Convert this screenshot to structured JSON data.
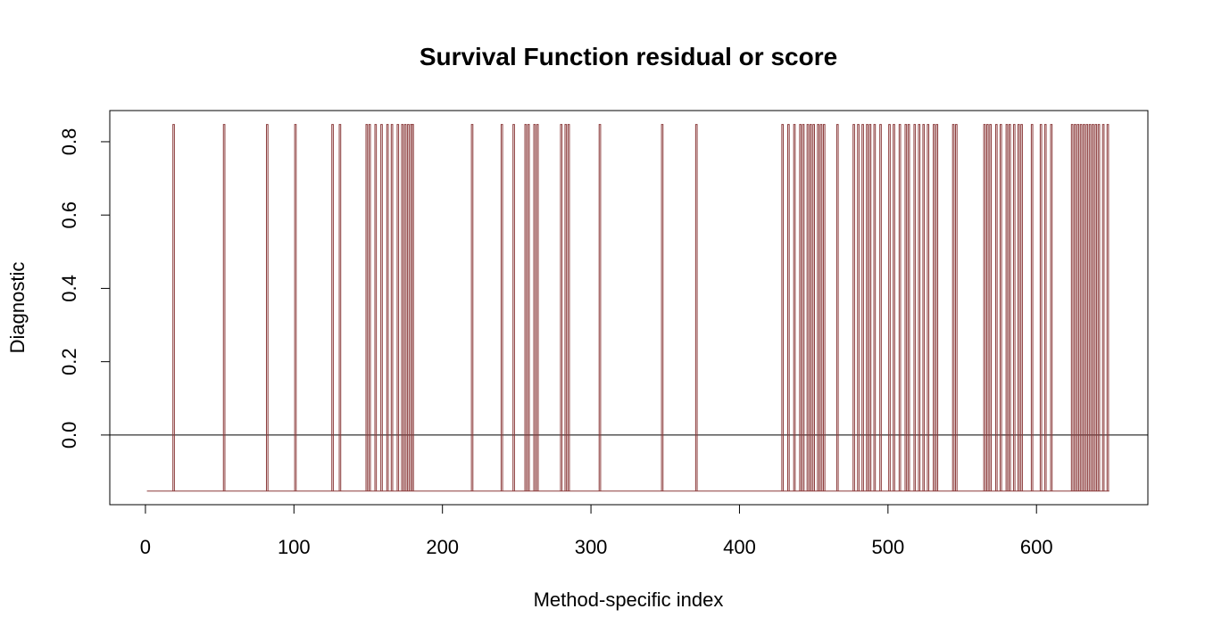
{
  "chart_data": {
    "type": "line",
    "style": "step",
    "title": "Survival Function residual or score",
    "xlabel": "Method-specific index",
    "ylabel": "Diagnostic",
    "xlim": [
      -24,
      675
    ],
    "ylim": [
      -0.19,
      0.885
    ],
    "x_ticks": [
      0,
      100,
      200,
      300,
      400,
      500,
      600
    ],
    "x_tick_labels": [
      "0",
      "100",
      "200",
      "300",
      "400",
      "500",
      "600"
    ],
    "y_ticks": [
      0.0,
      0.2,
      0.4,
      0.6,
      0.8
    ],
    "y_tick_labels": [
      "0.0",
      "0.2",
      "0.4",
      "0.6",
      "0.8"
    ],
    "reference_line": {
      "y": 0
    },
    "grid": false,
    "legend": "none",
    "baseline": -0.153,
    "line_color": "#8b3a3a",
    "x_start": 1,
    "x_end": 649,
    "spikes": [
      {
        "x": 19,
        "peak": 0.847
      },
      {
        "x": 53,
        "peak": 0.847
      },
      {
        "x": 82,
        "peak": 0.847
      },
      {
        "x": 101,
        "peak": 0.847
      },
      {
        "x": 126,
        "peak": 0.847
      },
      {
        "x": 131,
        "peak": 0.847
      },
      {
        "x": 149,
        "peak": 0.847
      },
      {
        "x": 151,
        "peak": 0.847
      },
      {
        "x": 155,
        "peak": 0.847
      },
      {
        "x": 159,
        "peak": 0.847
      },
      {
        "x": 163,
        "peak": 0.847
      },
      {
        "x": 166,
        "peak": 0.847
      },
      {
        "x": 170,
        "peak": 0.847
      },
      {
        "x": 173,
        "peak": 0.847
      },
      {
        "x": 175,
        "peak": 0.847
      },
      {
        "x": 177,
        "peak": 0.847
      },
      {
        "x": 179,
        "peak": 0.847
      },
      {
        "x": 180,
        "peak": 0.847
      },
      {
        "x": 220,
        "peak": 0.847
      },
      {
        "x": 240,
        "peak": 0.847
      },
      {
        "x": 248,
        "peak": 0.847
      },
      {
        "x": 256,
        "peak": 0.847
      },
      {
        "x": 258,
        "peak": 0.847
      },
      {
        "x": 262,
        "peak": 0.847
      },
      {
        "x": 264,
        "peak": 0.847
      },
      {
        "x": 280,
        "peak": 0.847
      },
      {
        "x": 283,
        "peak": 0.847
      },
      {
        "x": 285,
        "peak": 0.847
      },
      {
        "x": 306,
        "peak": 0.847
      },
      {
        "x": 348,
        "peak": 0.847
      },
      {
        "x": 371,
        "peak": 0.847
      },
      {
        "x": 429,
        "peak": 0.847
      },
      {
        "x": 433,
        "peak": 0.847
      },
      {
        "x": 437,
        "peak": 0.847
      },
      {
        "x": 441,
        "peak": 0.847
      },
      {
        "x": 443,
        "peak": 0.847
      },
      {
        "x": 446,
        "peak": 0.847
      },
      {
        "x": 448,
        "peak": 0.847
      },
      {
        "x": 450,
        "peak": 0.847
      },
      {
        "x": 453,
        "peak": 0.847
      },
      {
        "x": 455,
        "peak": 0.847
      },
      {
        "x": 457,
        "peak": 0.847
      },
      {
        "x": 466,
        "peak": 0.847
      },
      {
        "x": 477,
        "peak": 0.847
      },
      {
        "x": 480,
        "peak": 0.847
      },
      {
        "x": 483,
        "peak": 0.847
      },
      {
        "x": 486,
        "peak": 0.847
      },
      {
        "x": 488,
        "peak": 0.847
      },
      {
        "x": 491,
        "peak": 0.847
      },
      {
        "x": 495,
        "peak": 0.847
      },
      {
        "x": 501,
        "peak": 0.847
      },
      {
        "x": 504,
        "peak": 0.847
      },
      {
        "x": 508,
        "peak": 0.847
      },
      {
        "x": 512,
        "peak": 0.847
      },
      {
        "x": 514,
        "peak": 0.847
      },
      {
        "x": 518,
        "peak": 0.847
      },
      {
        "x": 521,
        "peak": 0.847
      },
      {
        "x": 524,
        "peak": 0.847
      },
      {
        "x": 527,
        "peak": 0.847
      },
      {
        "x": 531,
        "peak": 0.847
      },
      {
        "x": 533,
        "peak": 0.847
      },
      {
        "x": 544,
        "peak": 0.847
      },
      {
        "x": 546,
        "peak": 0.847
      },
      {
        "x": 565,
        "peak": 0.847
      },
      {
        "x": 567,
        "peak": 0.847
      },
      {
        "x": 569,
        "peak": 0.847
      },
      {
        "x": 573,
        "peak": 0.847
      },
      {
        "x": 576,
        "peak": 0.847
      },
      {
        "x": 580,
        "peak": 0.847
      },
      {
        "x": 582,
        "peak": 0.847
      },
      {
        "x": 585,
        "peak": 0.847
      },
      {
        "x": 588,
        "peak": 0.847
      },
      {
        "x": 590,
        "peak": 0.847
      },
      {
        "x": 597,
        "peak": 0.847
      },
      {
        "x": 603,
        "peak": 0.847
      },
      {
        "x": 606,
        "peak": 0.847
      },
      {
        "x": 610,
        "peak": 0.847
      },
      {
        "x": 624,
        "peak": 0.847
      },
      {
        "x": 626,
        "peak": 0.847
      },
      {
        "x": 628,
        "peak": 0.847
      },
      {
        "x": 630,
        "peak": 0.847
      },
      {
        "x": 632,
        "peak": 0.847
      },
      {
        "x": 634,
        "peak": 0.847
      },
      {
        "x": 636,
        "peak": 0.847
      },
      {
        "x": 638,
        "peak": 0.847
      },
      {
        "x": 640,
        "peak": 0.847
      },
      {
        "x": 642,
        "peak": 0.847
      },
      {
        "x": 645,
        "peak": 0.847
      },
      {
        "x": 648,
        "peak": 0.847
      }
    ]
  }
}
